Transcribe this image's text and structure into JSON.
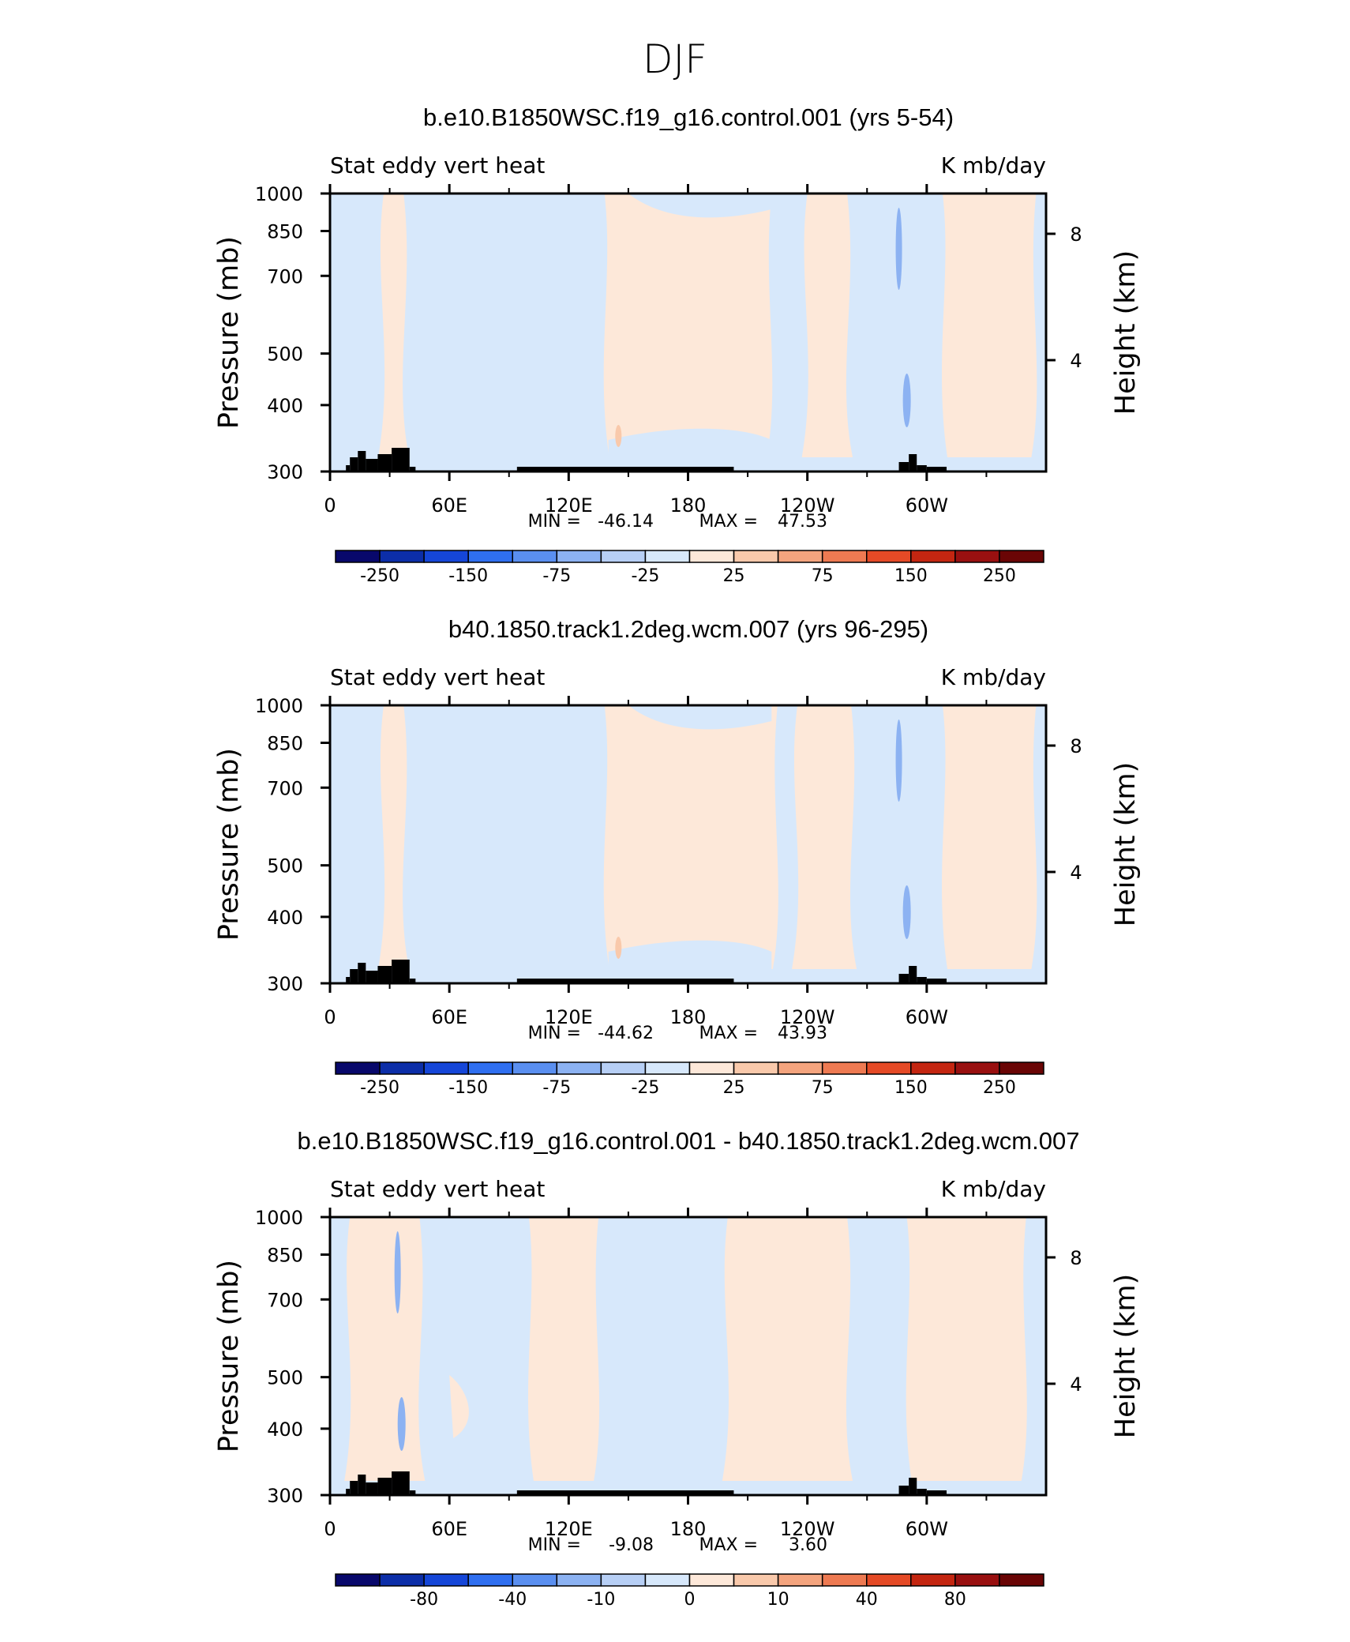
{
  "figure_title": "DJF",
  "colors": {
    "land": "#000000",
    "palette": [
      "#08086b",
      "#0c2ea8",
      "#1546d8",
      "#2f6ff0",
      "#5a8ff0",
      "#8cb2f2",
      "#b7cff5",
      "#d7e8fb",
      "#fde8d9",
      "#f9c9ab",
      "#f4a47e",
      "#ee7a52",
      "#e54a26",
      "#c42611",
      "#991010",
      "#6a0505"
    ]
  },
  "chart_data": [
    {
      "type": "heatmap",
      "title": "b.e10.B1850WSC.f19_g16.control.001 (yrs 5-54)",
      "left_label": "Stat eddy vert heat",
      "right_label": "K mb/day",
      "ylabel": "Pressure (mb)",
      "ylabel_right": "Height (km)",
      "xticks": [
        "0",
        "60E",
        "120E",
        "180",
        "120W",
        "60W"
      ],
      "yticks": [
        "300",
        "400",
        "500",
        "700",
        "850",
        "1000"
      ],
      "rticks": [
        "8",
        "4"
      ],
      "stats": {
        "min_label": "MIN =",
        "min": "-46.14",
        "max_label": "MAX =",
        "max": "47.53"
      },
      "colorbar_labels": [
        "-250",
        "-150",
        "-75",
        "-25",
        "25",
        "75",
        "150",
        "250"
      ],
      "x_range": [
        0,
        360
      ],
      "y_range": [
        1000,
        300
      ],
      "positive_regions_lon": [
        [
          27,
          37
        ],
        [
          138,
          222
        ],
        [
          240,
          260
        ],
        [
          308,
          355
        ]
      ],
      "negative_strong_lon": [
        286,
        290
      ]
    },
    {
      "type": "heatmap",
      "title": "b40.1850.track1.2deg.wcm.007 (yrs 96-295)",
      "left_label": "Stat eddy vert heat",
      "right_label": "K mb/day",
      "ylabel": "Pressure (mb)",
      "ylabel_right": "Height (km)",
      "xticks": [
        "0",
        "60E",
        "120E",
        "180",
        "120W",
        "60W"
      ],
      "yticks": [
        "300",
        "400",
        "500",
        "700",
        "850",
        "1000"
      ],
      "rticks": [
        "8",
        "4"
      ],
      "stats": {
        "min_label": "MIN =",
        "min": "-44.62",
        "max_label": "MAX =",
        "max": "43.93"
      },
      "colorbar_labels": [
        "-250",
        "-150",
        "-75",
        "-25",
        "25",
        "75",
        "150",
        "250"
      ],
      "x_range": [
        0,
        360
      ],
      "y_range": [
        1000,
        300
      ],
      "positive_regions_lon": [
        [
          27,
          37
        ],
        [
          138,
          225
        ],
        [
          235,
          262
        ],
        [
          308,
          355
        ]
      ],
      "negative_strong_lon": [
        286,
        290
      ]
    },
    {
      "type": "heatmap",
      "title": "b.e10.B1850WSC.f19_g16.control.001 - b40.1850.track1.2deg.wcm.007",
      "left_label": "Stat eddy vert heat",
      "right_label": "K mb/day",
      "ylabel": "Pressure (mb)",
      "ylabel_right": "Height (km)",
      "xticks": [
        "0",
        "60E",
        "120E",
        "180",
        "120W",
        "60W"
      ],
      "yticks": [
        "300",
        "400",
        "500",
        "700",
        "850",
        "1000"
      ],
      "rticks": [
        "8",
        "4"
      ],
      "stats": {
        "min_label": "MIN =",
        "min": "-9.08",
        "max_label": "MAX =",
        "max": "3.60"
      },
      "colorbar_labels": [
        "-80",
        "-40",
        "-10",
        "0",
        "10",
        "40",
        "80"
      ],
      "x_range": [
        0,
        360
      ],
      "y_range": [
        1000,
        300
      ],
      "positive_regions_lon": [
        [
          10,
          45
        ],
        [
          100,
          135
        ],
        [
          200,
          260
        ],
        [
          290,
          350
        ]
      ],
      "negative_strong_lon": [
        34,
        36
      ]
    }
  ]
}
